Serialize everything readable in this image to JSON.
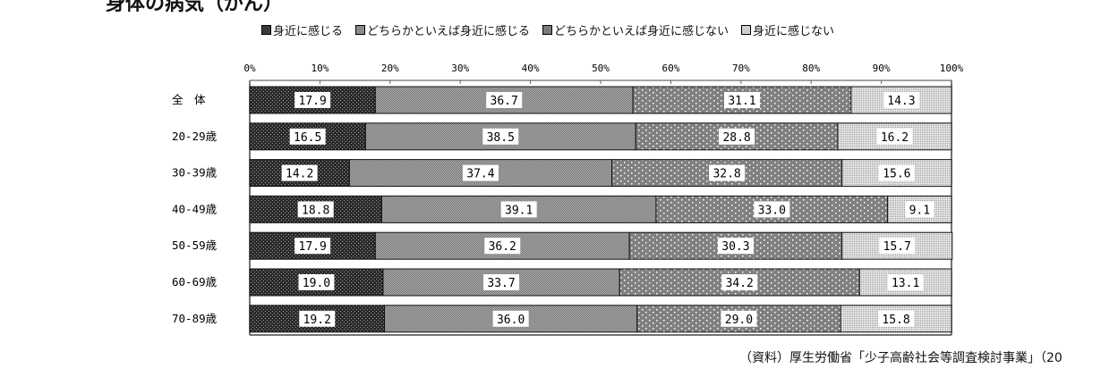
{
  "chart_data": {
    "type": "bar",
    "orientation": "horizontal",
    "stacked": "100%",
    "title": "身体の病気（がん）",
    "categories": [
      "全　体",
      "20-29歳",
      "30-39歳",
      "40-49歳",
      "50-59歳",
      "60-69歳",
      "70-89歳"
    ],
    "series": [
      {
        "name": "身近に感じる",
        "values": [
          17.9,
          16.5,
          14.2,
          18.8,
          17.9,
          19.0,
          19.2
        ],
        "color": "#3a3a3a"
      },
      {
        "name": "どちらかといえば身近に感じる",
        "values": [
          36.7,
          38.5,
          37.4,
          39.1,
          36.2,
          33.7,
          36.0
        ],
        "color": "#8a8a8a"
      },
      {
        "name": "どちらかといえば身近に感じない",
        "values": [
          31.1,
          28.8,
          32.8,
          33.0,
          30.3,
          34.2,
          29.0
        ],
        "color": "#7a7a7a"
      },
      {
        "name": "身近に感じない",
        "values": [
          14.3,
          16.2,
          15.6,
          9.1,
          15.7,
          13.1,
          15.8
        ],
        "color": "#cfcfcf"
      }
    ],
    "xticks": [
      "0%",
      "10%",
      "20%",
      "30%",
      "40%",
      "50%",
      "60%",
      "70%",
      "80%",
      "90%",
      "100%"
    ],
    "xlim": [
      0,
      100
    ],
    "legend_position": "top",
    "grid": false,
    "source": "（資料）厚生労働省「少子高齢社会等調査検討事業」（20"
  }
}
